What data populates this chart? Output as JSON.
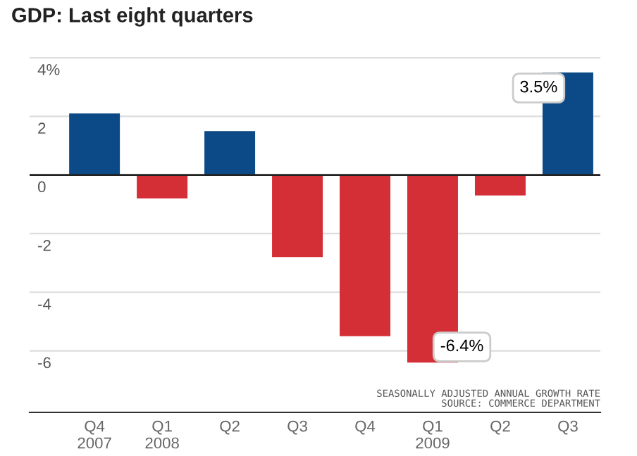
{
  "chart_data": {
    "type": "bar",
    "title": "GDP: Last eight quarters",
    "categories": [
      "Q4\n2007",
      "Q1\n2008",
      "Q2",
      "Q3",
      "Q4",
      "Q1\n2009",
      "Q2",
      "Q3"
    ],
    "values": [
      2.1,
      -0.8,
      1.5,
      -2.8,
      -5.5,
      -6.4,
      -0.7,
      3.5
    ],
    "colors": [
      "#0b4a86",
      "#d42e36",
      "#0b4a86",
      "#d42e36",
      "#d42e36",
      "#d42e36",
      "#d42e36",
      "#0b4a86"
    ],
    "value_labels": [
      null,
      null,
      null,
      null,
      null,
      "-6.4%",
      null,
      "3.5%"
    ],
    "ylim": [
      -8.1,
      4.05
    ],
    "yticks": [
      {
        "value": 4,
        "label": "4%"
      },
      2,
      0,
      -2,
      -4,
      -6
    ],
    "grid": "y",
    "annotations": [
      "SEASONALLY ADJUSTED ANNUAL GROWTH RATE",
      "SOURCE: COMMERCE DEPARTMENT"
    ]
  }
}
